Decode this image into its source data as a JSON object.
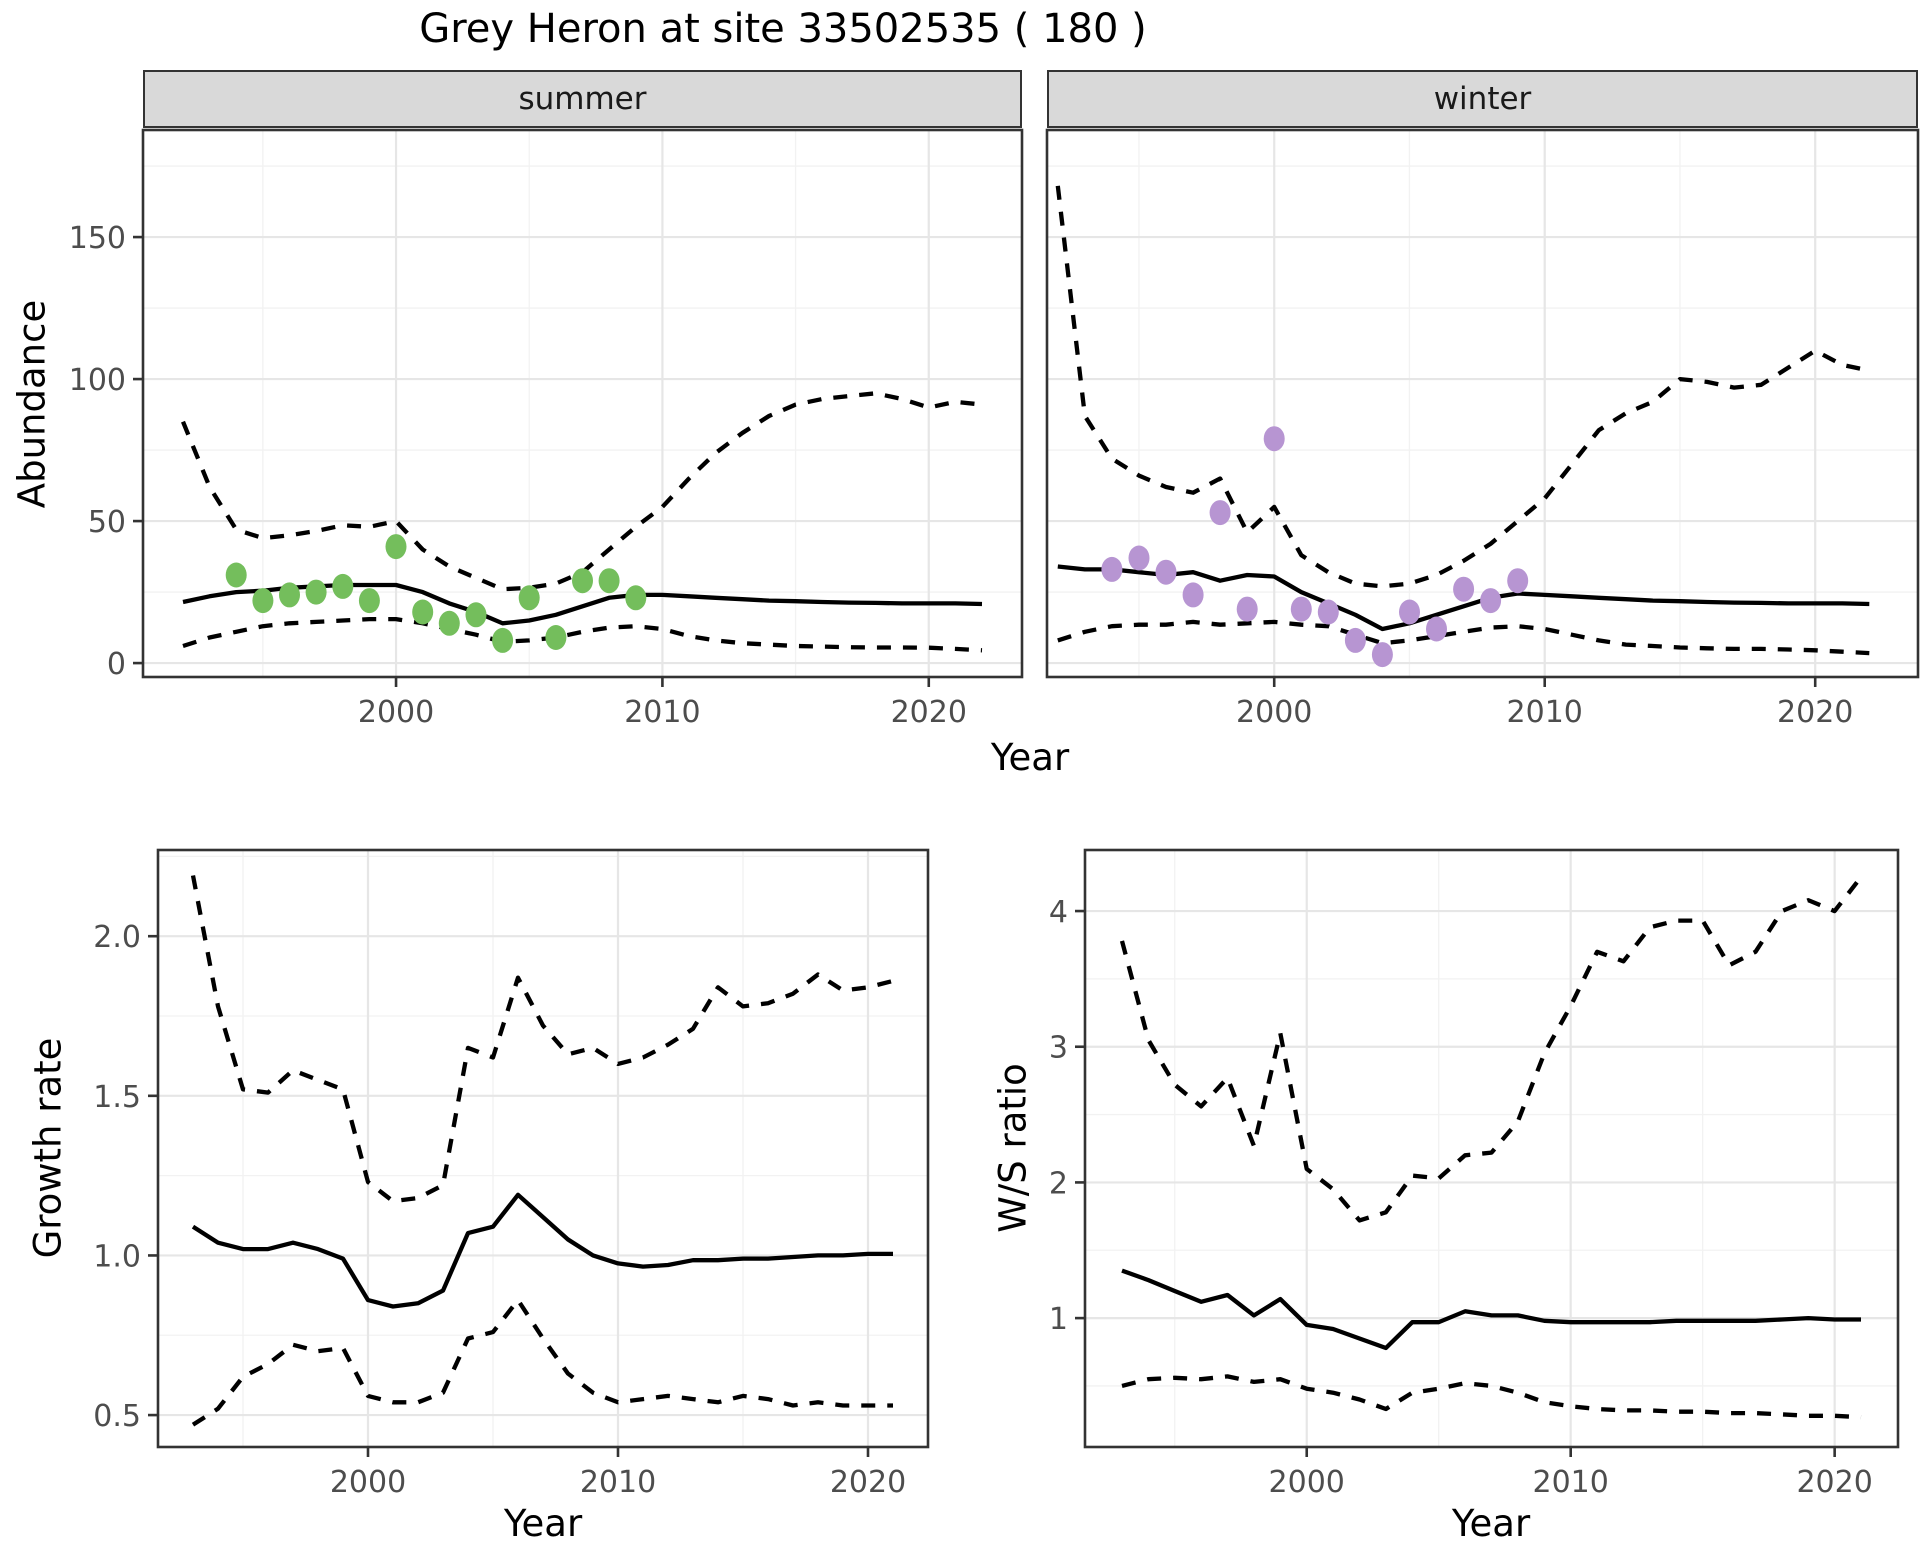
{
  "title": "Grey Heron at site 33502535 ( 180 )",
  "colors": {
    "series_line": "#000000",
    "summer_point": "#74BE5C",
    "winter_point": "#B795D2",
    "grid_major": "#E6E6E6",
    "grid_minor": "#F2F2F2",
    "panel_border": "#333333",
    "strip_bg": "#D9D9D9",
    "tick_label": "#4D4D4D",
    "tick_mark": "#333333",
    "panel_bg": "#FFFFFF"
  },
  "chart_data": [
    {
      "id": "summer",
      "type": "line",
      "facet_label": "summer",
      "ylabel": "Abundance",
      "xlabel": "Year",
      "xlim": [
        1990.5,
        2023.5
      ],
      "ylim": [
        -4.9,
        187.7
      ],
      "xticks": [
        {
          "v": 2000,
          "label": "2000"
        },
        {
          "v": 2010,
          "label": "2010"
        },
        {
          "v": 2020,
          "label": "2020"
        }
      ],
      "yticks": [
        {
          "v": 0,
          "label": "0"
        },
        {
          "v": 50,
          "label": "50"
        },
        {
          "v": 100,
          "label": "100"
        },
        {
          "v": 150,
          "label": "150"
        }
      ],
      "x_minor": [
        1995,
        2005,
        2015
      ],
      "y_minor": [
        25,
        75,
        125,
        175
      ],
      "grid": true,
      "legend": "none",
      "years": [
        1992,
        1993,
        1994,
        1995,
        1996,
        1997,
        1998,
        1999,
        2000,
        2001,
        2002,
        2003,
        2004,
        2005,
        2006,
        2007,
        2008,
        2009,
        2010,
        2011,
        2012,
        2013,
        2014,
        2015,
        2016,
        2017,
        2018,
        2019,
        2020,
        2021,
        2022
      ],
      "series": [
        {
          "name": "upper_ci",
          "style": "dashed",
          "values": [
            85,
            62,
            47,
            44,
            45,
            46.5,
            48.5,
            48,
            50,
            40,
            34,
            30,
            26,
            26.5,
            28,
            32,
            40,
            48,
            55,
            65,
            74,
            81,
            87,
            91,
            93,
            94,
            95,
            93,
            90,
            92,
            91
          ]
        },
        {
          "name": "lower_ci",
          "style": "dashed",
          "values": [
            6,
            9,
            11,
            13,
            14,
            14.5,
            15,
            15.5,
            15.5,
            14,
            12,
            10,
            7.5,
            8,
            9,
            11,
            12.5,
            13,
            12,
            9.5,
            8,
            7,
            6.5,
            6,
            5.8,
            5.6,
            5.5,
            5.5,
            5.4,
            5,
            4.5
          ]
        },
        {
          "name": "mean",
          "style": "solid",
          "values": [
            21.5,
            23.5,
            25,
            25.5,
            26.5,
            27,
            27.5,
            27.5,
            27.5,
            25,
            21,
            18,
            14,
            15,
            17,
            20,
            23,
            24,
            24,
            23.5,
            23,
            22.5,
            22,
            21.8,
            21.5,
            21.3,
            21.2,
            21,
            21,
            21,
            20.8
          ]
        }
      ],
      "points": {
        "color_key": "summer_point",
        "years": [
          1994,
          1995,
          1996,
          1997,
          1998,
          1999,
          2000,
          2001,
          2002,
          2003,
          2004,
          2005,
          2006,
          2007,
          2008,
          2009
        ],
        "values": [
          31,
          22,
          24,
          25,
          27,
          22,
          41,
          18,
          14,
          17,
          8,
          23,
          9,
          29,
          29,
          23
        ]
      }
    },
    {
      "id": "winter",
      "type": "line",
      "facet_label": "winter",
      "ylabel": "Abundance",
      "xlabel": "Year",
      "xlim": [
        1991.6,
        2023.8
      ],
      "ylim": [
        -4.9,
        187.7
      ],
      "xticks": [
        {
          "v": 2000,
          "label": "2000"
        },
        {
          "v": 2010,
          "label": "2010"
        },
        {
          "v": 2020,
          "label": "2020"
        }
      ],
      "yticks": [
        {
          "v": 0,
          "label": "0"
        },
        {
          "v": 50,
          "label": "50"
        },
        {
          "v": 100,
          "label": "100"
        },
        {
          "v": 150,
          "label": "150"
        }
      ],
      "x_minor": [
        1995,
        2005,
        2015
      ],
      "y_minor": [
        25,
        75,
        125,
        175
      ],
      "grid": true,
      "legend": "none",
      "years": [
        1992,
        1993,
        1994,
        1995,
        1996,
        1997,
        1998,
        1999,
        2000,
        2001,
        2002,
        2003,
        2004,
        2005,
        2006,
        2007,
        2008,
        2009,
        2010,
        2011,
        2012,
        2013,
        2014,
        2015,
        2016,
        2017,
        2018,
        2019,
        2020,
        2021,
        2022
      ],
      "series": [
        {
          "name": "upper_ci",
          "style": "dashed",
          "values": [
            168,
            87,
            72,
            66,
            62,
            60,
            65,
            46,
            55,
            38,
            32,
            28,
            27,
            28,
            31,
            36,
            42,
            50,
            58,
            70,
            82,
            88,
            92,
            100,
            99,
            97,
            98,
            104,
            110,
            105,
            103
          ]
        },
        {
          "name": "lower_ci",
          "style": "dashed",
          "values": [
            8,
            11,
            13,
            13.5,
            13.5,
            14.5,
            13.5,
            14,
            14.5,
            13.5,
            13,
            10,
            7,
            8,
            9.5,
            11,
            12.5,
            13,
            12,
            10,
            8,
            6.5,
            6,
            5.5,
            5.2,
            5,
            5,
            4.8,
            4.5,
            4,
            3.5
          ]
        },
        {
          "name": "mean",
          "style": "solid",
          "values": [
            34,
            33,
            33,
            32,
            31,
            32,
            29,
            31,
            30.5,
            25,
            21,
            17,
            12,
            14,
            17,
            20,
            23,
            24.5,
            24,
            23.5,
            23,
            22.5,
            22,
            21.8,
            21.5,
            21.3,
            21.2,
            21,
            21,
            21,
            20.8
          ]
        }
      ],
      "points": {
        "color_key": "winter_point",
        "years": [
          1994,
          1995,
          1996,
          1997,
          1998,
          1999,
          2000,
          2001,
          2002,
          2003,
          2004,
          2005,
          2006,
          2007,
          2008,
          2009
        ],
        "values": [
          33,
          37,
          32,
          24,
          53,
          19,
          79,
          19,
          18,
          8,
          3,
          18,
          12,
          26,
          22,
          29
        ]
      }
    },
    {
      "id": "growth",
      "type": "line",
      "facet_label": "",
      "ylabel": "Growth rate",
      "xlabel": "Year",
      "xlim": [
        1991.6,
        2022.4
      ],
      "ylim": [
        0.4,
        2.27
      ],
      "xticks": [
        {
          "v": 2000,
          "label": "2000"
        },
        {
          "v": 2010,
          "label": "2010"
        },
        {
          "v": 2020,
          "label": "2020"
        }
      ],
      "yticks": [
        {
          "v": 0.5,
          "label": "0.5"
        },
        {
          "v": 1.0,
          "label": "1.0"
        },
        {
          "v": 1.5,
          "label": "1.5"
        },
        {
          "v": 2.0,
          "label": "2.0"
        }
      ],
      "x_minor": [
        1995,
        2005,
        2015
      ],
      "y_minor": [
        0.75,
        1.25,
        1.75,
        2.25
      ],
      "grid": true,
      "legend": "none",
      "years": [
        1993,
        1994,
        1995,
        1996,
        1997,
        1998,
        1999,
        2000,
        2001,
        2002,
        2003,
        2004,
        2005,
        2006,
        2007,
        2008,
        2009,
        2010,
        2011,
        2012,
        2013,
        2014,
        2015,
        2016,
        2017,
        2018,
        2019,
        2020,
        2021
      ],
      "series": [
        {
          "name": "upper_ci",
          "style": "dashed",
          "values": [
            2.19,
            1.78,
            1.52,
            1.51,
            1.58,
            1.55,
            1.52,
            1.23,
            1.17,
            1.18,
            1.22,
            1.65,
            1.62,
            1.87,
            1.72,
            1.63,
            1.65,
            1.6,
            1.62,
            1.66,
            1.71,
            1.84,
            1.78,
            1.79,
            1.82,
            1.88,
            1.83,
            1.84,
            1.86
          ]
        },
        {
          "name": "lower_ci",
          "style": "dashed",
          "values": [
            0.47,
            0.52,
            0.62,
            0.66,
            0.72,
            0.7,
            0.71,
            0.56,
            0.54,
            0.54,
            0.57,
            0.74,
            0.76,
            0.86,
            0.74,
            0.63,
            0.57,
            0.54,
            0.55,
            0.56,
            0.55,
            0.54,
            0.56,
            0.55,
            0.53,
            0.54,
            0.53,
            0.53,
            0.53
          ]
        },
        {
          "name": "mean",
          "style": "solid",
          "values": [
            1.09,
            1.04,
            1.02,
            1.02,
            1.04,
            1.02,
            0.99,
            0.86,
            0.84,
            0.85,
            0.89,
            1.07,
            1.09,
            1.19,
            1.12,
            1.05,
            1.0,
            0.975,
            0.965,
            0.97,
            0.985,
            0.985,
            0.99,
            0.99,
            0.995,
            1.0,
            1.0,
            1.005,
            1.005
          ]
        }
      ],
      "points": null
    },
    {
      "id": "ws",
      "type": "line",
      "facet_label": "",
      "ylabel": "W/S ratio",
      "xlabel": "Year",
      "xlim": [
        1991.6,
        2022.4
      ],
      "ylim": [
        0.05,
        4.45
      ],
      "xticks": [
        {
          "v": 2000,
          "label": "2000"
        },
        {
          "v": 2010,
          "label": "2010"
        },
        {
          "v": 2020,
          "label": "2020"
        }
      ],
      "yticks": [
        {
          "v": 1,
          "label": "1"
        },
        {
          "v": 2,
          "label": "2"
        },
        {
          "v": 3,
          "label": "3"
        },
        {
          "v": 4,
          "label": "4"
        }
      ],
      "x_minor": [
        1995,
        2005,
        2015
      ],
      "y_minor": [
        0.5,
        1.5,
        2.5,
        3.5
      ],
      "grid": true,
      "legend": "none",
      "years": [
        1993,
        1994,
        1995,
        1996,
        1997,
        1998,
        1999,
        2000,
        2001,
        2002,
        2003,
        2004,
        2005,
        2006,
        2007,
        2008,
        2009,
        2010,
        2011,
        2012,
        2013,
        2014,
        2015,
        2016,
        2017,
        2018,
        2019,
        2020,
        2021
      ],
      "series": [
        {
          "name": "upper_ci",
          "style": "dashed",
          "values": [
            3.78,
            3.05,
            2.72,
            2.56,
            2.77,
            2.27,
            3.1,
            2.1,
            1.95,
            1.72,
            1.78,
            2.05,
            2.03,
            2.2,
            2.22,
            2.45,
            2.95,
            3.3,
            3.7,
            3.63,
            3.88,
            3.93,
            3.93,
            3.6,
            3.7,
            4.0,
            4.08,
            4.0,
            4.25
          ]
        },
        {
          "name": "lower_ci",
          "style": "dashed",
          "values": [
            0.5,
            0.55,
            0.56,
            0.55,
            0.57,
            0.53,
            0.55,
            0.48,
            0.45,
            0.4,
            0.33,
            0.45,
            0.48,
            0.52,
            0.5,
            0.45,
            0.38,
            0.35,
            0.33,
            0.32,
            0.32,
            0.31,
            0.31,
            0.3,
            0.3,
            0.29,
            0.28,
            0.28,
            0.27
          ]
        },
        {
          "name": "mean",
          "style": "solid",
          "values": [
            1.35,
            1.28,
            1.2,
            1.12,
            1.17,
            1.02,
            1.14,
            0.95,
            0.92,
            0.85,
            0.78,
            0.97,
            0.97,
            1.05,
            1.02,
            1.02,
            0.98,
            0.97,
            0.97,
            0.97,
            0.97,
            0.98,
            0.98,
            0.98,
            0.98,
            0.99,
            1.0,
            0.99,
            0.99
          ]
        }
      ],
      "points": null
    }
  ]
}
